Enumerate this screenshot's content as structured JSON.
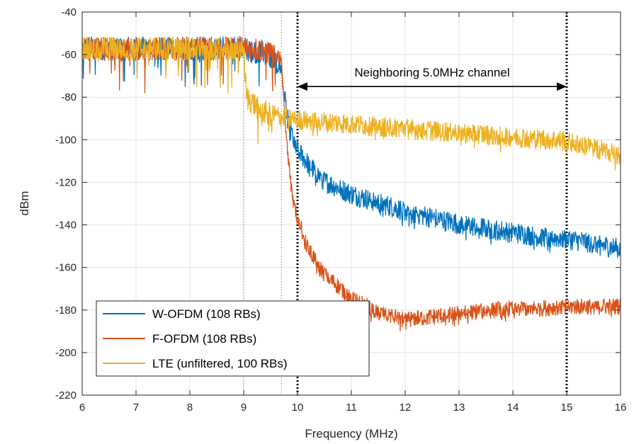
{
  "chart_data": {
    "type": "line",
    "title": "",
    "xlabel": "Frequency (MHz)",
    "ylabel": "dBm",
    "xlim": [
      6,
      16
    ],
    "ylim": [
      -220,
      -40
    ],
    "xticks": [
      6,
      7,
      8,
      9,
      10,
      11,
      12,
      13,
      14,
      15,
      16
    ],
    "yticks": [
      -220,
      -200,
      -180,
      -160,
      -140,
      -120,
      -100,
      -80,
      -60,
      -40
    ],
    "grid": true,
    "legend_position": "bottom-left",
    "series": [
      {
        "name": "W-OFDM (108 RBs)",
        "color": "#0072bd",
        "points": [
          [
            6.0,
            -55
          ],
          [
            8.9,
            -55
          ],
          [
            9.4,
            -57
          ],
          [
            9.7,
            -65
          ],
          [
            9.8,
            -85
          ],
          [
            9.9,
            -97
          ],
          [
            10.0,
            -103
          ],
          [
            10.2,
            -110
          ],
          [
            10.5,
            -118
          ],
          [
            11.0,
            -124
          ],
          [
            11.5,
            -128
          ],
          [
            12.0,
            -132
          ],
          [
            12.5,
            -135
          ],
          [
            13.0,
            -138
          ],
          [
            13.5,
            -140
          ],
          [
            14.0,
            -142
          ],
          [
            14.5,
            -144
          ],
          [
            15.0,
            -145
          ],
          [
            15.5,
            -147
          ],
          [
            16.0,
            -150
          ]
        ],
        "noise": 5
      },
      {
        "name": "F-OFDM (108 RBs)",
        "color": "#d95319",
        "points": [
          [
            6.0,
            -55
          ],
          [
            8.9,
            -55
          ],
          [
            9.4,
            -56
          ],
          [
            9.7,
            -60
          ],
          [
            9.8,
            -100
          ],
          [
            9.9,
            -125
          ],
          [
            10.0,
            -135
          ],
          [
            10.2,
            -150
          ],
          [
            10.5,
            -162
          ],
          [
            11.0,
            -173
          ],
          [
            11.5,
            -180
          ],
          [
            12.0,
            -183
          ],
          [
            12.5,
            -182
          ],
          [
            13.0,
            -180
          ],
          [
            13.5,
            -179
          ],
          [
            14.0,
            -178
          ],
          [
            14.5,
            -178
          ],
          [
            15.0,
            -177
          ],
          [
            15.5,
            -177
          ],
          [
            16.0,
            -177
          ]
        ],
        "noise": 4
      },
      {
        "name": "LTE (unfiltered, 100 RBs)",
        "color": "#edb120",
        "points": [
          [
            6.0,
            -55
          ],
          [
            9.0,
            -55
          ],
          [
            9.05,
            -78
          ],
          [
            9.3,
            -84
          ],
          [
            9.7,
            -88
          ],
          [
            10.0,
            -89
          ],
          [
            11.0,
            -91
          ],
          [
            12.0,
            -93
          ],
          [
            13.0,
            -95
          ],
          [
            14.0,
            -97
          ],
          [
            15.0,
            -99
          ],
          [
            15.5,
            -102
          ],
          [
            16.0,
            -106
          ]
        ],
        "noise": 5
      }
    ],
    "vertical_lines": [
      {
        "x": 9.0,
        "style": "dotted-thin"
      },
      {
        "x": 9.7,
        "style": "dotted-thin"
      },
      {
        "x": 10.0,
        "style": "dotted-thick"
      },
      {
        "x": 15.0,
        "style": "dotted-thick"
      }
    ],
    "annotations": [
      {
        "text": "Neighboring 5.0MHz channel",
        "x_from": 10,
        "x_to": 15,
        "y": -75,
        "arrow": "double"
      }
    ]
  }
}
